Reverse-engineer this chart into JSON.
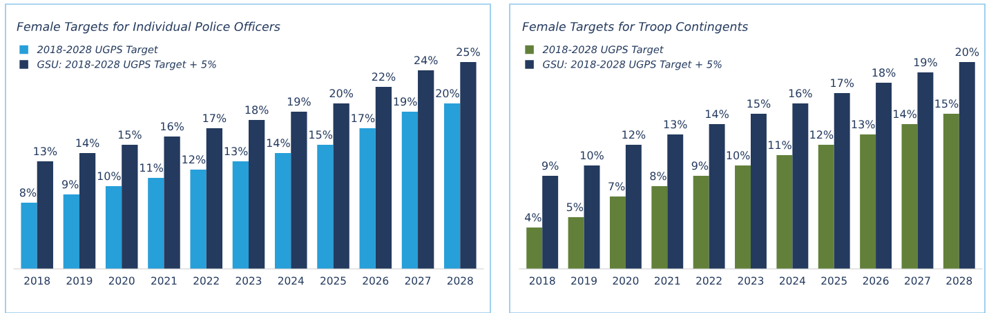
{
  "chart_data": [
    {
      "type": "bar",
      "title": "Female Targets for Individual Police Officers",
      "categories": [
        "2018",
        "2019",
        "2020",
        "2021",
        "2022",
        "2023",
        "2024",
        "2025",
        "2026",
        "2027",
        "2028"
      ],
      "legend": "top left",
      "series": [
        {
          "name": "2018-2028 UGPS Target",
          "color": "#279fd9",
          "values": [
            8,
            9,
            10,
            11,
            12,
            13,
            14,
            15,
            17,
            19,
            20
          ],
          "value_labels": [
            "8%",
            "9%",
            "10%",
            "11%",
            "12%",
            "13%",
            "14%",
            "15%",
            "17%",
            "19%",
            "20%"
          ]
        },
        {
          "name": "GSU: 2018-2028 UGPS Target + 5%",
          "color": "#243a5e",
          "values": [
            13,
            14,
            15,
            16,
            17,
            18,
            19,
            20,
            22,
            24,
            25
          ],
          "value_labels": [
            "13%",
            "14%",
            "15%",
            "16%",
            "17%",
            "18%",
            "19%",
            "20%",
            "22%",
            "24%",
            "25%"
          ]
        }
      ]
    },
    {
      "type": "bar",
      "title": "Female Targets for Troop Contingents",
      "categories": [
        "2018",
        "2019",
        "2020",
        "2021",
        "2022",
        "2023",
        "2024",
        "2025",
        "2026",
        "2027",
        "2028"
      ],
      "legend": "top left",
      "series": [
        {
          "name": "2018-2028 UGPS Target",
          "color": "#62803a",
          "values": [
            4,
            5,
            7,
            8,
            9,
            10,
            11,
            12,
            13,
            14,
            15
          ],
          "value_labels": [
            "4%",
            "5%",
            "7%",
            "8%",
            "9%",
            "10%",
            "11%",
            "12%",
            "13%",
            "14%",
            "15%"
          ]
        },
        {
          "name": "GSU: 2018-2028 UGPS Target + 5%",
          "color": "#243a5e",
          "values": [
            9,
            10,
            12,
            13,
            14,
            15,
            16,
            17,
            18,
            19,
            20
          ],
          "value_labels": [
            "9%",
            "10%",
            "12%",
            "13%",
            "14%",
            "15%",
            "16%",
            "17%",
            "18%",
            "19%",
            "20%"
          ]
        }
      ]
    }
  ]
}
